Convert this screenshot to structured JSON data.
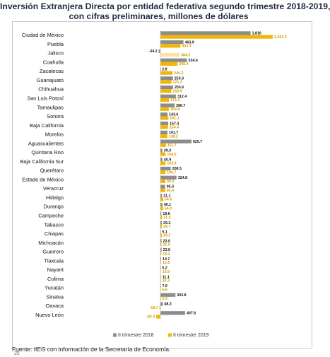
{
  "page": {
    "title_line1": "Inversión Extranjera Directa por entidad federativa segundo trimestre 2018-2019,",
    "title_line2": "con cifras preliminares, millones de dólares",
    "source": "Fuente: IIEG con información de la Secretaría de Economía.",
    "page_number": "25"
  },
  "colors": {
    "series_2018": "#8c8c8c",
    "series_2019": "#f2b705",
    "series_2019_light": "#f7e3a4",
    "label_2018": "#111111",
    "label_2019": "#d69a00"
  },
  "chart_data": {
    "type": "bar",
    "orientation": "horizontal",
    "title": "Inversión Extranjera Directa por entidad federativa segundo trimestre 2018-2019, con cifras preliminares, millones de dólares",
    "categories": [
      "Ciudad de México",
      "Puebla",
      "Jalisco",
      "Coahuila",
      "Zacatecas",
      "Guanajuato",
      "Chihuahua",
      "San Luis Potosí",
      "Tamaulipas",
      "Sonora",
      "Baja California",
      "Morelos",
      "Aguascalientes",
      "Quintana Roo",
      "Baja California Sur",
      "Querétaro",
      "Estado de México",
      "Veracruz",
      "Hidalgo",
      "Durango",
      "Campeche",
      "Tabasco",
      "Chiapas",
      "Michoacán",
      "Guerrero",
      "Tlaxcala",
      "Nayarit",
      "Colima",
      "Yucatán",
      "Sinaloa",
      "Oaxaca",
      "Nuevo León"
    ],
    "series": [
      {
        "name": "II trimestre 2018",
        "values": [
          1816,
          463.9,
          -34.2,
          534.6,
          2.8,
          253.3,
          255.6,
          312.4,
          286.7,
          143.6,
          157.4,
          141.7,
          625.7,
          39.3,
          40.9,
          208.5,
          324.8,
          95.3,
          31.1,
          40.1,
          19.6,
          29.2,
          5.1,
          23.0,
          23.6,
          14.7,
          5.2,
          11.1,
          7.0,
          303.8,
          48.3,
          497.6
        ],
        "labels": [
          "1,816",
          "463.9",
          "-34.2",
          "534.6",
          "2.8",
          "253.3",
          "255.6",
          "312.4",
          "286.7",
          "143.6",
          "157.4",
          "141.7",
          "625.7",
          "39.3",
          "40.9",
          "208.5",
          "324.8",
          "95.3",
          "31.1",
          "40.1",
          "19.6",
          "29.2",
          "5.1",
          "23.0",
          "23.6",
          "14.7",
          "5.2",
          "11.1",
          "7.0",
          "303.8",
          "48.3",
          "497.6"
        ]
      },
      {
        "name": "II trimestre 2019",
        "values": [
          2263.2,
          403.3,
          384.5,
          345.4,
          244.2,
          221.3,
          218.9,
          172.3,
          169.8,
          161.1,
          154.4,
          138.2,
          111.7,
          104.5,
          102.9,
          100.7,
          99.3,
          95.4,
          54.6,
          54.0,
          31.6,
          29.7,
          29.3,
          21.0,
          18.2,
          13.8,
          10.9,
          10.3,
          6.6,
          5.9,
          -18.7,
          -83.3
        ],
        "labels": [
          "2,263.2",
          "403.3",
          "384.5",
          "345.4",
          "244.2",
          "221.3",
          "218.9",
          "172.3",
          "169.8",
          "161.1",
          "154.4",
          "138.2",
          "111.7",
          "104.5",
          "102.9",
          "100.7",
          "99.3",
          "95.4",
          "54.6",
          "54.0",
          "31.6",
          "29.7",
          "29.3",
          "21.0",
          "18.2",
          "13.8",
          "10.9",
          "10.3",
          "6.6",
          "5.9",
          "-18.7",
          "-83.3"
        ]
      }
    ],
    "highlight_category": "Jalisco",
    "legend": {
      "position": "bottom",
      "items": [
        "II trimestre 2018",
        "II trimestre 2019"
      ]
    },
    "xlim": [
      -150,
      2300
    ],
    "grid": false
  }
}
